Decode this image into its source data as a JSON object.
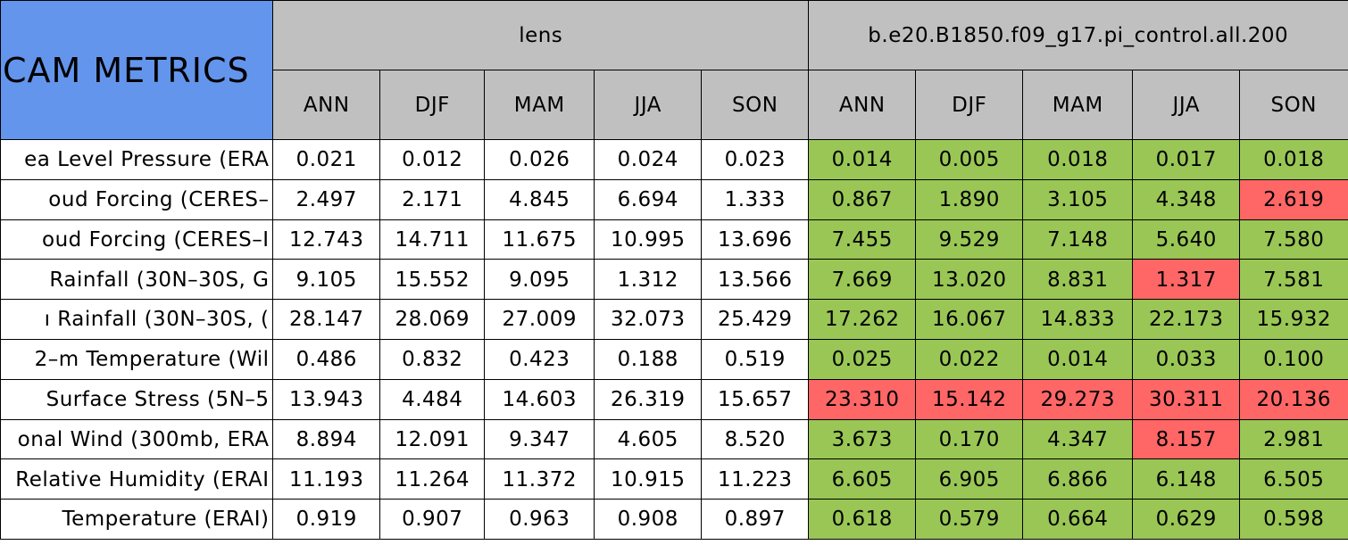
{
  "table": {
    "corner": "CAM METRICS",
    "corner_color": "#6495ed",
    "header_color": "#c0c0c0",
    "groups": [
      "lens",
      "b.e20.B1850.f09_g17.pi_control.all.200"
    ],
    "seasons": [
      "ANN",
      "DJF",
      "MAM",
      "JJA",
      "SON",
      "ANN",
      "DJF",
      "MAM",
      "JJA",
      "SON"
    ],
    "rows": [
      {
        "label": "ea Level Pressure (ERA",
        "values": [
          "0.021",
          "0.012",
          "0.026",
          "0.024",
          "0.023",
          "0.014",
          "0.005",
          "0.018",
          "0.017",
          "0.018"
        ],
        "colors": [
          "#ffffff",
          "#ffffff",
          "#ffffff",
          "#ffffff",
          "#ffffff",
          "#99c655",
          "#99c655",
          "#99c655",
          "#99c655",
          "#99c655"
        ]
      },
      {
        "label": "oud Forcing (CERES–",
        "values": [
          "2.497",
          "2.171",
          "4.845",
          "6.694",
          "1.333",
          "0.867",
          "1.890",
          "3.105",
          "4.348",
          "2.619"
        ],
        "colors": [
          "#ffffff",
          "#ffffff",
          "#ffffff",
          "#ffffff",
          "#ffffff",
          "#99c655",
          "#99c655",
          "#99c655",
          "#99c655",
          "#ff6666"
        ]
      },
      {
        "label": "oud Forcing (CERES–I",
        "values": [
          "12.743",
          "14.711",
          "11.675",
          "10.995",
          "13.696",
          "7.455",
          "9.529",
          "7.148",
          "5.640",
          "7.580"
        ],
        "colors": [
          "#ffffff",
          "#ffffff",
          "#ffffff",
          "#ffffff",
          "#ffffff",
          "#99c655",
          "#99c655",
          "#99c655",
          "#99c655",
          "#99c655"
        ]
      },
      {
        "label": "Rainfall (30N–30S, G",
        "values": [
          "9.105",
          "15.552",
          "9.095",
          "1.312",
          "13.566",
          "7.669",
          "13.020",
          "8.831",
          "1.317",
          "7.581"
        ],
        "colors": [
          "#ffffff",
          "#ffffff",
          "#ffffff",
          "#ffffff",
          "#ffffff",
          "#99c655",
          "#99c655",
          "#99c655",
          "#ff6666",
          "#99c655"
        ]
      },
      {
        "label": "ı Rainfall (30N–30S, (",
        "values": [
          "28.147",
          "28.069",
          "27.009",
          "32.073",
          "25.429",
          "17.262",
          "16.067",
          "14.833",
          "22.173",
          "15.932"
        ],
        "colors": [
          "#ffffff",
          "#ffffff",
          "#ffffff",
          "#ffffff",
          "#ffffff",
          "#99c655",
          "#99c655",
          "#99c655",
          "#99c655",
          "#99c655"
        ]
      },
      {
        "label": "2–m Temperature (Wil",
        "values": [
          "0.486",
          "0.832",
          "0.423",
          "0.188",
          "0.519",
          "0.025",
          "0.022",
          "0.014",
          "0.033",
          "0.100"
        ],
        "colors": [
          "#ffffff",
          "#ffffff",
          "#ffffff",
          "#ffffff",
          "#ffffff",
          "#99c655",
          "#99c655",
          "#99c655",
          "#99c655",
          "#99c655"
        ]
      },
      {
        "label": "Surface Stress (5N–5",
        "values": [
          "13.943",
          "4.484",
          "14.603",
          "26.319",
          "15.657",
          "23.310",
          "15.142",
          "29.273",
          "30.311",
          "20.136"
        ],
        "colors": [
          "#ffffff",
          "#ffffff",
          "#ffffff",
          "#ffffff",
          "#ffffff",
          "#ff6666",
          "#ff6666",
          "#ff6666",
          "#ff6666",
          "#ff6666"
        ]
      },
      {
        "label": "onal Wind (300mb, ERA",
        "values": [
          "8.894",
          "12.091",
          "9.347",
          "4.605",
          "8.520",
          "3.673",
          "0.170",
          "4.347",
          "8.157",
          "2.981"
        ],
        "colors": [
          "#ffffff",
          "#ffffff",
          "#ffffff",
          "#ffffff",
          "#ffffff",
          "#99c655",
          "#99c655",
          "#99c655",
          "#ff6666",
          "#99c655"
        ]
      },
      {
        "label": "Relative Humidity (ERAI",
        "values": [
          "11.193",
          "11.264",
          "11.372",
          "10.915",
          "11.223",
          "6.605",
          "6.905",
          "6.866",
          "6.148",
          "6.505"
        ],
        "colors": [
          "#ffffff",
          "#ffffff",
          "#ffffff",
          "#ffffff",
          "#ffffff",
          "#99c655",
          "#99c655",
          "#99c655",
          "#99c655",
          "#99c655"
        ]
      },
      {
        "label": "Temperature (ERAI)",
        "values": [
          "0.919",
          "0.907",
          "0.963",
          "0.908",
          "0.897",
          "0.618",
          "0.579",
          "0.664",
          "0.629",
          "0.598"
        ],
        "colors": [
          "#ffffff",
          "#ffffff",
          "#ffffff",
          "#ffffff",
          "#ffffff",
          "#99c655",
          "#99c655",
          "#99c655",
          "#99c655",
          "#99c655"
        ]
      }
    ]
  }
}
